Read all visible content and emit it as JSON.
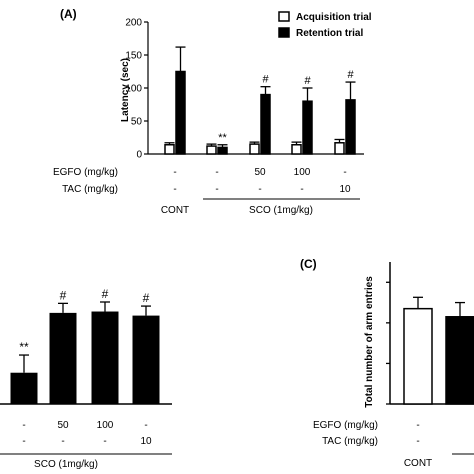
{
  "chart_data": [
    {
      "panel_label": "(A)",
      "type": "bar",
      "ylabel": "Latency (sec)",
      "ylim": [
        0,
        200
      ],
      "yticks": [
        0,
        50,
        100,
        150,
        200
      ],
      "legend": [
        "Acquisition trial",
        "Retention trial"
      ],
      "groups": [
        {
          "acq": 14,
          "acq_err": 3,
          "ret": 125,
          "ret_err": 37,
          "ret_mark": ""
        },
        {
          "acq": 12,
          "acq_err": 3,
          "ret": 10,
          "ret_err": 4,
          "ret_mark": "**"
        },
        {
          "acq": 15,
          "acq_err": 3,
          "ret": 90,
          "ret_err": 12,
          "ret_mark": "#"
        },
        {
          "acq": 14,
          "acq_err": 4,
          "ret": 80,
          "ret_err": 20,
          "ret_mark": "#"
        },
        {
          "acq": 17,
          "acq_err": 5,
          "ret": 82,
          "ret_err": 27,
          "ret_mark": "#"
        }
      ],
      "row_labels": [
        "EGFO (mg/kg)",
        "TAC (mg/kg)"
      ],
      "egfo_values": [
        "-",
        "-",
        "50",
        "100",
        "-"
      ],
      "tac_values": [
        "-",
        "-",
        "-",
        "-",
        "10"
      ],
      "cont_label": "CONT",
      "sco_label": "SCO (1mg/kg)"
    },
    {
      "panel_label": "",
      "type": "bar",
      "groups": [
        {
          "value": 23,
          "err": 13,
          "mark": "**"
        },
        {
          "value": 67,
          "err": 7,
          "mark": "#"
        },
        {
          "value": 68,
          "err": 7,
          "mark": "#"
        },
        {
          "value": 65,
          "err": 7,
          "mark": "#"
        }
      ],
      "egfo_values": [
        "-",
        "50",
        "100",
        "-"
      ],
      "tac_values": [
        "-",
        "-",
        "-",
        "10"
      ],
      "sco_label": "SCO (1mg/kg)"
    },
    {
      "panel_label": "(C)",
      "type": "bar",
      "ylabel": "Total number of arm entries",
      "groups": [
        {
          "value": 23.5,
          "err": 2.8,
          "fill": "#ffffff"
        },
        {
          "value": 21.5,
          "err": 3.5,
          "fill": "#000000"
        }
      ],
      "row_labels": [
        "EGFO (mg/kg)",
        "TAC (mg/kg)"
      ],
      "egfo_values": [
        "-",
        "-"
      ],
      "tac_values": [
        "-",
        "-"
      ],
      "cont_label": "CONT"
    }
  ]
}
